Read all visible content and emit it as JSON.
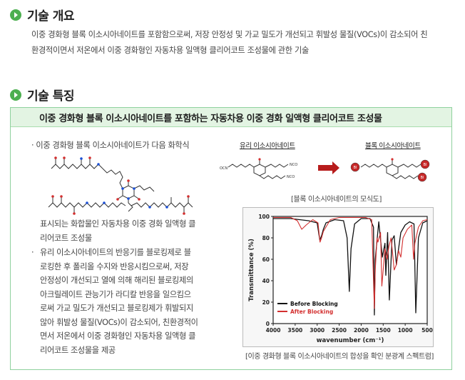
{
  "sections": {
    "overview_title": "기술 개요",
    "overview_line1": "이중 경화형 블록 이소시아네이트를 포함함으로써, 저장 안정성 및 가교 밀도가 개선되고 휘발성 물질(VOCs)이 감소되어 친",
    "overview_line2": "환경적이면서 저온에서 이중 경화형인 자동차용 일액형 클리어코트 조성물에 관한 기술",
    "features_title": "기술 특징"
  },
  "feature_box": {
    "title": "이중 경화형 블록 이소시아네이트를 포함하는 자동차용 이중 경화 일액형 클리어코트 조성물",
    "bullet1_line1": "이중 경화형 블록 이소시아네이트가 다음 화학식",
    "bullet1_line2": "표시되는 화합물인 자동차용 이중 경화 일액형 클",
    "bullet1_line3": "리어코트 조성물",
    "bullet2_lines": [
      "유리 이소시아네이트의 반응기를 블로킹제로 블",
      "로킹한 후 폴리올 수지와 반응시킴으로써, 저장",
      "안정성이 개선되고 열에 의해 해리된 블로킹제의",
      "아크릴레이트 관능기가 라디칼 반응을 일으킴으",
      "로써 가교 밀도가 개선되고 블로킹제가 휘발되지",
      "않아 휘발성 물질(VOCs)이 감소되어, 친환경적이",
      "면서 저온에서 이중 경화형인 자동차용 일액형 클",
      "리어코트 조성물을 제공"
    ],
    "schematic_label_free": "유리 이소시아네이트",
    "schematic_label_blocked": "블록 이소시아네이트",
    "schematic_caption": "[블록 이소시아네이트의 모식도]",
    "spectrum_caption": "[이중 경화형 블록 이소시아네이트의 합성을 확인 분광계 스펙트럼]"
  },
  "chart_data": {
    "type": "line",
    "xlabel": "wavenumber (cm⁻¹)",
    "ylabel": "Transmittance (%)",
    "xlim": [
      4000,
      500
    ],
    "ylim": [
      0,
      100
    ],
    "x_ticks": [
      "4000",
      "3500",
      "3000",
      "2500",
      "2000",
      "1500",
      "1000",
      "500"
    ],
    "y_ticks": [
      "0",
      "20",
      "40",
      "60",
      "80",
      "100"
    ],
    "legend_placement": "bottom-left",
    "colors": {
      "before": "#111111",
      "after": "#d32f2f"
    },
    "series": [
      {
        "name": "Before Blocking",
        "x": [
          4000,
          3600,
          3400,
          3200,
          3000,
          2940,
          2900,
          2860,
          2800,
          2600,
          2400,
          2320,
          2270,
          2230,
          2150,
          2000,
          1800,
          1720,
          1700,
          1680,
          1600,
          1520,
          1460,
          1440,
          1400,
          1360,
          1300,
          1250,
          1200,
          1100,
          1000,
          900,
          800,
          760,
          700,
          600,
          500
        ],
        "y": [
          98,
          98,
          97,
          96,
          94,
          78,
          82,
          88,
          94,
          97,
          96,
          80,
          30,
          70,
          93,
          98,
          98,
          90,
          8,
          60,
          95,
          62,
          75,
          45,
          85,
          22,
          78,
          82,
          55,
          85,
          92,
          95,
          93,
          10,
          80,
          94,
          96
        ]
      },
      {
        "name": "After Blocking",
        "x": [
          4000,
          3600,
          3450,
          3350,
          3250,
          3100,
          2980,
          2935,
          2900,
          2860,
          2700,
          2500,
          2300,
          2100,
          1900,
          1760,
          1720,
          1700,
          1680,
          1640,
          1620,
          1560,
          1530,
          1460,
          1410,
          1370,
          1320,
          1250,
          1200,
          1150,
          1100,
          1050,
          950,
          850,
          810,
          780,
          700,
          600,
          500
        ],
        "y": [
          99,
          99,
          96,
          88,
          92,
          97,
          94,
          76,
          80,
          86,
          97,
          99,
          99,
          99,
          99,
          97,
          40,
          14,
          50,
          80,
          76,
          85,
          35,
          70,
          60,
          72,
          80,
          50,
          55,
          68,
          62,
          80,
          88,
          92,
          60,
          75,
          90,
          96,
          97
        ]
      }
    ]
  }
}
